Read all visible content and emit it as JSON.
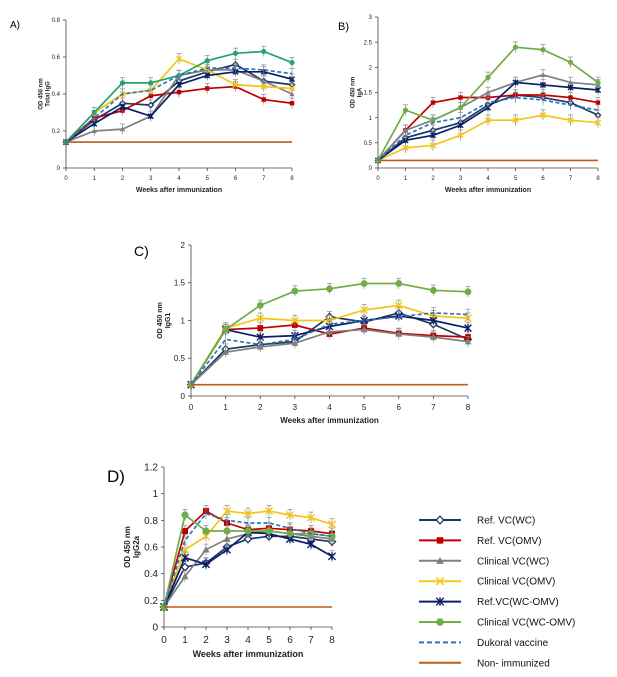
{
  "colors": {
    "ref_wc": "#1f3864",
    "ref_omv": "#c00000",
    "clin_wc": "#7f7f7f",
    "clin_omv": "#f5c518",
    "ref_wcomv": "#0b1f66",
    "clin_wcomv": "#70ad47",
    "clin_wcomv_panelA": "#24a36b",
    "dukoral": "#2e75b6",
    "non_immunized": "#b85c1f"
  },
  "legend": {
    "items": [
      {
        "label": "Ref. VC(WC)",
        "color": "#1f3864",
        "marker": "diamond",
        "dash": false
      },
      {
        "label": "Ref. VC(OMV)",
        "color": "#c00000",
        "marker": "square",
        "dash": false
      },
      {
        "label": "Clinical VC(WC)",
        "color": "#7f7f7f",
        "marker": "triangle",
        "dash": false
      },
      {
        "label": "Clinical VC(OMV)",
        "color": "#f5c518",
        "marker": "x",
        "dash": false
      },
      {
        "label": "Ref.VC(WC-OMV)",
        "color": "#0b1f66",
        "marker": "star",
        "dash": false
      },
      {
        "label": "Clinical VC(WC-OMV)",
        "color": "#70ad47",
        "marker": "circle",
        "dash": false
      },
      {
        "label": "Dukoral vaccine",
        "color": "#2e75b6",
        "marker": "none",
        "dash": true
      },
      {
        "label": "Non- immunized",
        "color": "#b85c1f",
        "marker": "none",
        "dash": false
      }
    ]
  },
  "chart_data": [
    {
      "type": "line",
      "panel_label": "A)",
      "ylabel": "OD 450 nm\nTotal IgG",
      "xlabel": "Weeks after immunization",
      "x": [
        0,
        1,
        2,
        3,
        4,
        5,
        6,
        7,
        8
      ],
      "ylim": [
        0,
        0.8
      ],
      "yticks": [
        0,
        0.2,
        0.4,
        0.6,
        0.8
      ],
      "series": [
        {
          "name": "Ref. VC(WC)",
          "values": [
            0.14,
            0.26,
            0.35,
            0.34,
            0.47,
            0.52,
            0.56,
            0.47,
            0.45
          ]
        },
        {
          "name": "Ref. VC(OMV)",
          "values": [
            0.14,
            0.27,
            0.31,
            0.39,
            0.41,
            0.43,
            0.44,
            0.37,
            0.35
          ]
        },
        {
          "name": "Clinical VC(WC)",
          "values": [
            0.14,
            0.2,
            0.21,
            0.28,
            0.5,
            0.53,
            0.53,
            0.47,
            0.4
          ]
        },
        {
          "name": "Clinical VC(OMV)",
          "values": [
            0.14,
            0.3,
            0.4,
            0.42,
            0.59,
            0.53,
            0.45,
            0.44,
            0.43
          ]
        },
        {
          "name": "Ref.VC(WC-OMV)",
          "values": [
            0.14,
            0.24,
            0.33,
            0.28,
            0.45,
            0.5,
            0.52,
            0.52,
            0.48
          ]
        },
        {
          "name": "Clinical VC(WC-OMV)",
          "values": [
            0.14,
            0.3,
            0.46,
            0.46,
            0.5,
            0.58,
            0.62,
            0.63,
            0.57
          ]
        },
        {
          "name": "Dukoral vaccine",
          "values": [
            0.14,
            0.27,
            0.4,
            0.42,
            0.5,
            0.54,
            0.54,
            0.53,
            0.51
          ]
        },
        {
          "name": "Non- immunized",
          "values": [
            0.14,
            0.14,
            0.14,
            0.14,
            0.14,
            0.14,
            0.14,
            0.14,
            0.14
          ]
        }
      ]
    },
    {
      "type": "line",
      "panel_label": "B)",
      "ylabel": "OD 450 nm\nIgA",
      "xlabel": "Weeks after immunization",
      "x": [
        0,
        1,
        2,
        3,
        4,
        5,
        6,
        7,
        8
      ],
      "ylim": [
        0,
        3
      ],
      "yticks": [
        0,
        0.5,
        1,
        1.5,
        2,
        2.5,
        3
      ],
      "series": [
        {
          "name": "Ref. VC(WC)",
          "values": [
            0.15,
            0.6,
            0.75,
            0.9,
            1.25,
            1.45,
            1.4,
            1.3,
            1.05
          ]
        },
        {
          "name": "Ref. VC(OMV)",
          "values": [
            0.15,
            0.75,
            1.3,
            1.4,
            1.4,
            1.45,
            1.45,
            1.4,
            1.3
          ]
        },
        {
          "name": "Clinical VC(WC)",
          "values": [
            0.15,
            0.75,
            0.95,
            1.2,
            1.5,
            1.7,
            1.85,
            1.7,
            1.65
          ]
        },
        {
          "name": "Clinical VC(OMV)",
          "values": [
            0.15,
            0.4,
            0.45,
            0.65,
            0.95,
            0.95,
            1.05,
            0.95,
            0.9
          ]
        },
        {
          "name": "Ref.VC(WC-OMV)",
          "values": [
            0.15,
            0.55,
            0.65,
            0.85,
            1.2,
            1.7,
            1.65,
            1.6,
            1.55
          ]
        },
        {
          "name": "Clinical VC(WC-OMV)",
          "values": [
            0.15,
            1.15,
            0.95,
            1.2,
            1.8,
            2.4,
            2.35,
            2.1,
            1.7
          ]
        },
        {
          "name": "Dukoral vaccine",
          "values": [
            0.15,
            0.65,
            0.9,
            1.0,
            1.3,
            1.4,
            1.35,
            1.25,
            1.15
          ]
        },
        {
          "name": "Non- immunized",
          "values": [
            0.15,
            0.15,
            0.15,
            0.15,
            0.15,
            0.15,
            0.15,
            0.15,
            0.15
          ]
        }
      ]
    },
    {
      "type": "line",
      "panel_label": "C)",
      "ylabel": "OD 450 nm\nIgG1",
      "xlabel": "Weeks after immunization",
      "x": [
        0,
        1,
        2,
        3,
        4,
        5,
        6,
        7,
        8
      ],
      "ylim": [
        0,
        2
      ],
      "yticks": [
        0,
        0.5,
        1,
        1.5,
        2
      ],
      "series": [
        {
          "name": "Ref. VC(WC)",
          "values": [
            0.15,
            0.62,
            0.68,
            0.72,
            1.05,
            0.98,
            1.1,
            0.95,
            0.75
          ]
        },
        {
          "name": "Ref. VC(OMV)",
          "values": [
            0.15,
            0.88,
            0.9,
            0.94,
            0.82,
            0.9,
            0.83,
            0.8,
            0.78
          ]
        },
        {
          "name": "Clinical VC(WC)",
          "values": [
            0.15,
            0.58,
            0.65,
            0.7,
            0.85,
            0.88,
            0.82,
            0.78,
            0.72
          ]
        },
        {
          "name": "Clinical VC(OMV)",
          "values": [
            0.15,
            0.9,
            1.03,
            1.0,
            1.0,
            1.14,
            1.2,
            1.06,
            1.03
          ]
        },
        {
          "name": "Ref.VC(WC-OMV)",
          "values": [
            0.15,
            0.88,
            0.78,
            0.8,
            0.92,
            1.0,
            1.06,
            1.0,
            0.9
          ]
        },
        {
          "name": "Clinical VC(WC-OMV)",
          "values": [
            0.15,
            0.88,
            1.2,
            1.39,
            1.42,
            1.49,
            1.49,
            1.4,
            1.38
          ]
        },
        {
          "name": "Dukoral vaccine",
          "values": [
            0.15,
            0.75,
            0.68,
            0.75,
            0.95,
            1.0,
            1.05,
            1.1,
            1.08
          ]
        },
        {
          "name": "Non- immunized",
          "values": [
            0.15,
            0.15,
            0.15,
            0.15,
            0.15,
            0.15,
            0.15,
            0.15,
            0.15
          ]
        }
      ]
    },
    {
      "type": "line",
      "panel_label": "D)",
      "ylabel": "OD 450 nm\nIgG2a",
      "xlabel": "Weeks after immunization",
      "x": [
        0,
        1,
        2,
        3,
        4,
        5,
        6,
        7,
        8
      ],
      "ylim": [
        0,
        1.2
      ],
      "yticks": [
        0,
        0.2,
        0.4,
        0.6,
        0.8,
        1,
        1.2
      ],
      "series": [
        {
          "name": "Ref. VC(WC)",
          "values": [
            0.15,
            0.45,
            0.48,
            0.6,
            0.66,
            0.68,
            0.68,
            0.66,
            0.64
          ]
        },
        {
          "name": "Ref. VC(OMV)",
          "values": [
            0.15,
            0.72,
            0.87,
            0.78,
            0.73,
            0.74,
            0.73,
            0.72,
            0.7
          ]
        },
        {
          "name": "Clinical VC(WC)",
          "values": [
            0.15,
            0.38,
            0.58,
            0.66,
            0.7,
            0.72,
            0.7,
            0.68,
            0.66
          ]
        },
        {
          "name": "Clinical VC(OMV)",
          "values": [
            0.15,
            0.58,
            0.68,
            0.87,
            0.85,
            0.87,
            0.84,
            0.82,
            0.77
          ]
        },
        {
          "name": "Ref.VC(WC-OMV)",
          "values": [
            0.15,
            0.52,
            0.47,
            0.58,
            0.71,
            0.7,
            0.66,
            0.62,
            0.53
          ]
        },
        {
          "name": "Clinical VC(WC-OMV)",
          "values": [
            0.15,
            0.84,
            0.72,
            0.72,
            0.72,
            0.72,
            0.7,
            0.7,
            0.68
          ]
        },
        {
          "name": "Dukoral vaccine",
          "values": [
            0.15,
            0.65,
            0.85,
            0.8,
            0.78,
            0.78,
            0.74,
            0.7,
            0.68
          ]
        },
        {
          "name": "Non- immunized",
          "values": [
            0.15,
            0.15,
            0.15,
            0.15,
            0.15,
            0.15,
            0.15,
            0.15,
            0.15
          ]
        }
      ]
    }
  ]
}
